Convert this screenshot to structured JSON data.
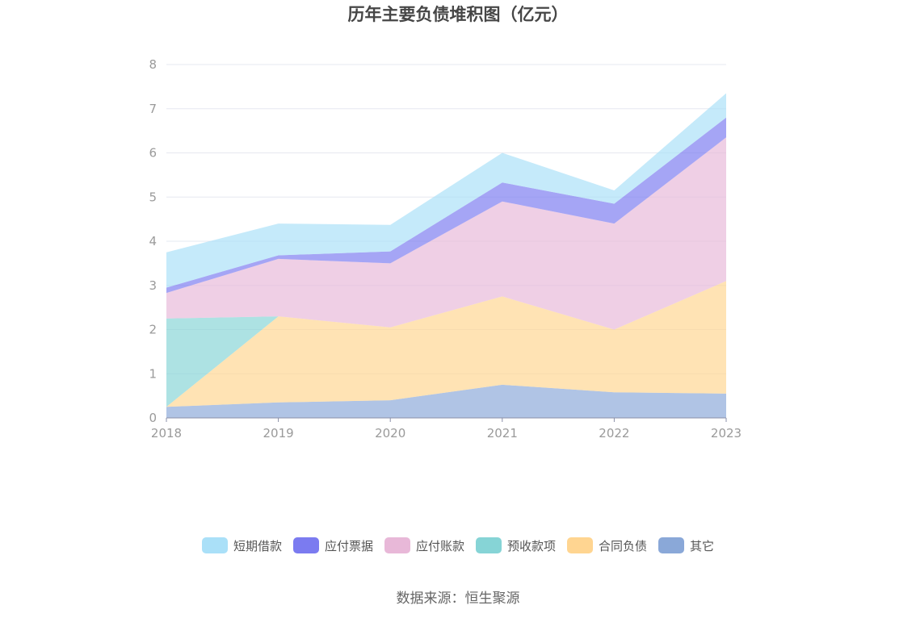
{
  "chart_data": {
    "type": "area",
    "stacked": true,
    "title": "历年主要负债堆积图（亿元）",
    "x": [
      "2018",
      "2019",
      "2020",
      "2021",
      "2022",
      "2023"
    ],
    "ylim": [
      0,
      8
    ],
    "yticks": [
      "0",
      "1",
      "2",
      "3",
      "4",
      "5",
      "6",
      "7",
      "8"
    ],
    "grid": true,
    "legend_position": "bottom",
    "series": [
      {
        "name": "其它",
        "color": "#8aa8d8",
        "values": [
          0.25,
          0.35,
          0.4,
          0.75,
          0.58,
          0.55
        ]
      },
      {
        "name": "合同负债",
        "color": "#ffd591",
        "values": [
          0.0,
          1.95,
          1.65,
          2.0,
          1.42,
          2.55
        ]
      },
      {
        "name": "预收款项",
        "color": "#86d4d6",
        "values": [
          2.0,
          0.0,
          0.0,
          0.0,
          0.0,
          0.0
        ]
      },
      {
        "name": "应付账款",
        "color": "#e8b8d8",
        "values": [
          0.58,
          1.3,
          1.45,
          2.15,
          2.4,
          3.25
        ]
      },
      {
        "name": "应付票据",
        "color": "#7b7bf0",
        "values": [
          0.12,
          0.08,
          0.27,
          0.43,
          0.45,
          0.45
        ]
      },
      {
        "name": "短期借款",
        "color": "#aae0f8",
        "values": [
          0.8,
          0.72,
          0.6,
          0.67,
          0.3,
          0.55
        ]
      }
    ],
    "legend_order": [
      "短期借款",
      "应付票据",
      "应付账款",
      "预收款项",
      "合同负债",
      "其它"
    ]
  },
  "footer": {
    "source": "数据来源：恒生聚源"
  }
}
